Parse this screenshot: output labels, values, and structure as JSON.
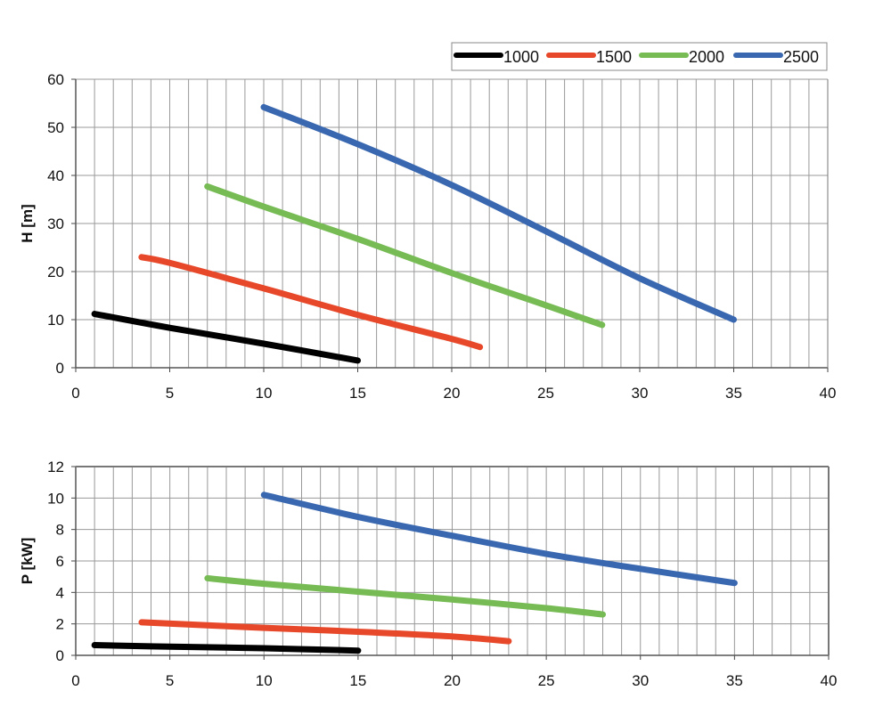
{
  "chart_data": [
    {
      "type": "line",
      "title": "",
      "xlabel": "",
      "ylabel": "H [m]",
      "xlim": [
        0,
        40
      ],
      "ylim": [
        0,
        60
      ],
      "xticks": [
        0,
        5,
        10,
        15,
        20,
        25,
        30,
        35,
        40
      ],
      "yticks": [
        0,
        10,
        20,
        30,
        40,
        50,
        60
      ],
      "grid": true,
      "legend": "top-right",
      "series": [
        {
          "name": "1000",
          "color": "#000000",
          "x": [
            1,
            5,
            10,
            15
          ],
          "y": [
            11.2,
            8.3,
            5.0,
            1.5
          ]
        },
        {
          "name": "1500",
          "color": "#e8482a",
          "x": [
            3.5,
            5,
            10,
            15,
            20,
            21.5
          ],
          "y": [
            23.0,
            21.8,
            16.5,
            11.0,
            6.0,
            4.3
          ]
        },
        {
          "name": "2000",
          "color": "#77bb55",
          "x": [
            7,
            10,
            15,
            20,
            25,
            28
          ],
          "y": [
            37.7,
            33.5,
            26.8,
            19.7,
            13.0,
            8.9
          ]
        },
        {
          "name": "2500",
          "color": "#3a68b0",
          "x": [
            10,
            15,
            20,
            25,
            30,
            35
          ],
          "y": [
            54.2,
            46.5,
            38.0,
            28.4,
            18.6,
            10.0
          ]
        }
      ]
    },
    {
      "type": "line",
      "title": "",
      "xlabel": "",
      "ylabel": "P [kW]",
      "xlim": [
        0,
        40
      ],
      "ylim": [
        0,
        12
      ],
      "xticks": [
        0,
        5,
        10,
        15,
        20,
        25,
        30,
        35,
        40
      ],
      "yticks": [
        0,
        2,
        4,
        6,
        8,
        10,
        12
      ],
      "grid": true,
      "series": [
        {
          "name": "1000",
          "color": "#000000",
          "x": [
            1,
            5,
            10,
            15
          ],
          "y": [
            0.65,
            0.55,
            0.45,
            0.3
          ]
        },
        {
          "name": "1500",
          "color": "#e8482a",
          "x": [
            3.5,
            10,
            15,
            20,
            23
          ],
          "y": [
            2.1,
            1.75,
            1.5,
            1.2,
            0.9
          ]
        },
        {
          "name": "2000",
          "color": "#77bb55",
          "x": [
            7,
            10,
            15,
            20,
            25,
            28
          ],
          "y": [
            4.9,
            4.55,
            4.05,
            3.55,
            3.0,
            2.6
          ]
        },
        {
          "name": "2500",
          "color": "#3a68b0",
          "x": [
            10,
            15,
            20,
            25,
            30,
            35
          ],
          "y": [
            10.2,
            8.8,
            7.6,
            6.45,
            5.5,
            4.6
          ]
        }
      ]
    }
  ]
}
